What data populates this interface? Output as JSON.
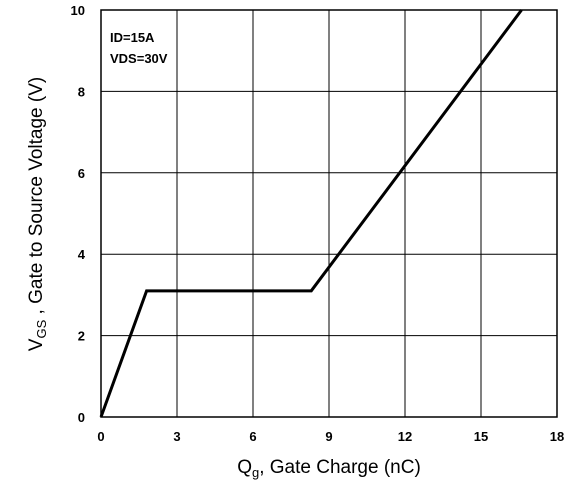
{
  "chart_data": {
    "type": "line",
    "title": "",
    "xlabel": {
      "main": "Q",
      "sub": "g",
      "rest": ", Gate Charge (nC)"
    },
    "ylabel": {
      "main": "V",
      "sub": "GS",
      "rest": " , Gate to Source Voltage (V)"
    },
    "xlim": [
      0,
      18
    ],
    "ylim": [
      0,
      10
    ],
    "xticks": [
      0,
      3,
      6,
      9,
      12,
      15,
      18
    ],
    "yticks": [
      0,
      2,
      4,
      6,
      8,
      10
    ],
    "grid": true,
    "annotations": [
      "ID=15A",
      "VDS=30V"
    ],
    "series": [
      {
        "color": "#000000",
        "x": [
          0,
          1.8,
          8.3,
          16.6
        ],
        "y": [
          0,
          3.1,
          3.1,
          10
        ]
      }
    ]
  }
}
